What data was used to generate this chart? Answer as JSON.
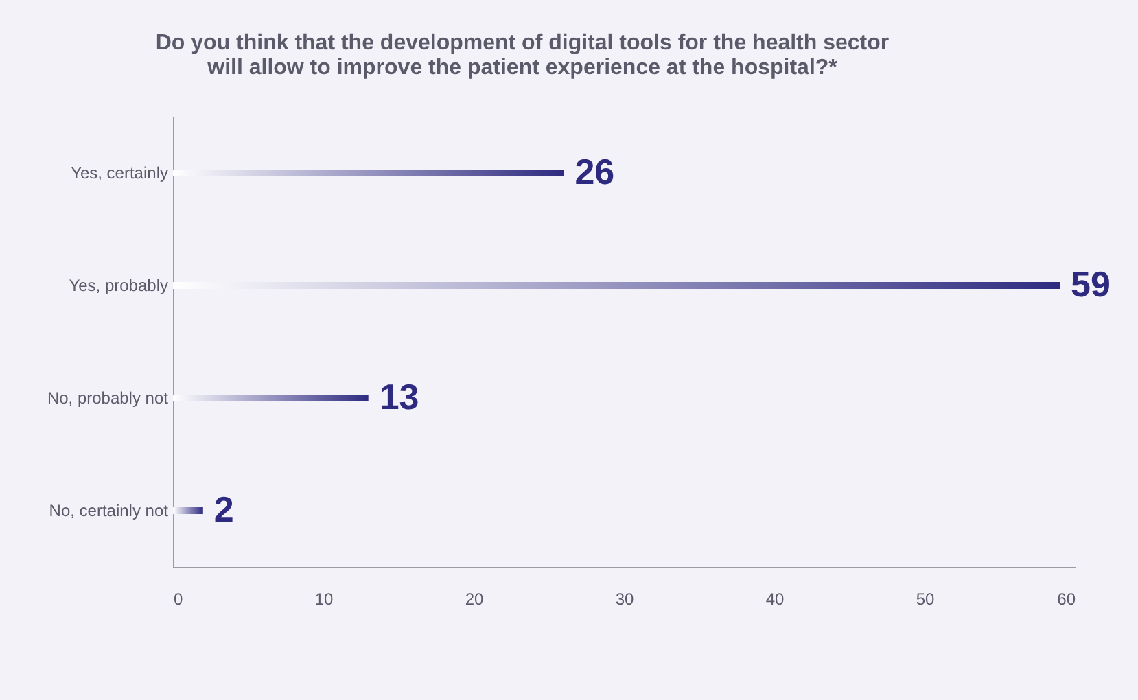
{
  "chart_data": {
    "type": "bar",
    "orientation": "horizontal",
    "title": "Do you think that the development of digital tools for the health sector\nwill allow to improve the patient experience at the hospital?*",
    "categories": [
      "Yes, certainly",
      "Yes, probably",
      "No, probably not",
      "No, certainly not"
    ],
    "values": [
      26,
      59,
      13,
      2
    ],
    "color": "#2e2a80",
    "xlim": [
      0,
      60
    ],
    "xticks": [
      0,
      10,
      20,
      30,
      40,
      50,
      60
    ],
    "data_labels": true,
    "grid": false
  }
}
